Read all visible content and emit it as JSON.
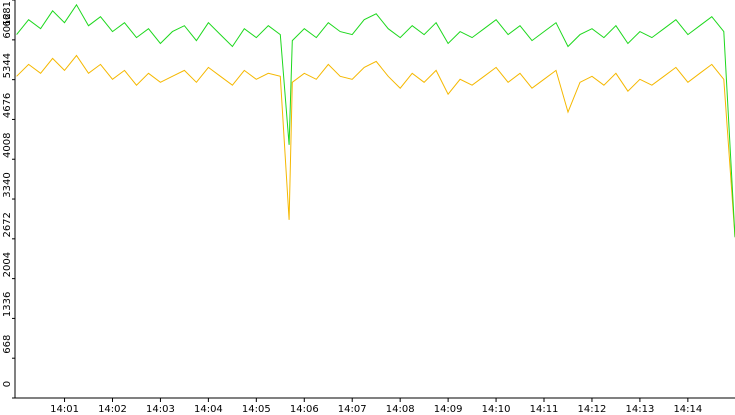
{
  "chart_data": {
    "type": "line",
    "x": [
      "14:00:00",
      "14:00:15",
      "14:00:30",
      "14:00:45",
      "14:01:00",
      "14:01:15",
      "14:01:30",
      "14:01:45",
      "14:02:00",
      "14:02:15",
      "14:02:30",
      "14:02:45",
      "14:03:00",
      "14:03:15",
      "14:03:30",
      "14:03:45",
      "14:04:00",
      "14:04:15",
      "14:04:30",
      "14:04:45",
      "14:05:00",
      "14:05:15",
      "14:05:30",
      "14:05:41",
      "14:05:45",
      "14:06:00",
      "14:06:15",
      "14:06:30",
      "14:06:45",
      "14:07:00",
      "14:07:15",
      "14:07:30",
      "14:07:45",
      "14:08:00",
      "14:08:15",
      "14:08:30",
      "14:08:45",
      "14:09:00",
      "14:09:15",
      "14:09:30",
      "14:09:45",
      "14:10:00",
      "14:10:15",
      "14:10:30",
      "14:10:45",
      "14:11:00",
      "14:11:15",
      "14:11:30",
      "14:11:45",
      "14:12:00",
      "14:12:15",
      "14:12:30",
      "14:12:45",
      "14:13:00",
      "14:13:15",
      "14:13:30",
      "14:13:45",
      "14:14:00",
      "14:14:15",
      "14:14:30",
      "14:14:45",
      "14:14:59"
    ],
    "series": [
      {
        "color": "#f5b800",
        "values": [
          5400,
          5600,
          5450,
          5700,
          5500,
          5750,
          5450,
          5600,
          5350,
          5500,
          5250,
          5450,
          5300,
          5400,
          5500,
          5300,
          5550,
          5400,
          5250,
          5500,
          5350,
          5450,
          5400,
          2990,
          5300,
          5450,
          5350,
          5600,
          5400,
          5350,
          5550,
          5650,
          5400,
          5200,
          5450,
          5300,
          5500,
          5100,
          5350,
          5250,
          5400,
          5550,
          5300,
          5450,
          5200,
          5350,
          5500,
          4800,
          5300,
          5400,
          5250,
          5450,
          5150,
          5350,
          5250,
          5400,
          5550,
          5300,
          5450,
          5600,
          5350,
          2700
        ]
      },
      {
        "color": "#1ed81e",
        "values": [
          6100,
          6350,
          6200,
          6500,
          6300,
          6600,
          6250,
          6400,
          6150,
          6300,
          6050,
          6200,
          5950,
          6150,
          6250,
          6000,
          6300,
          6100,
          5900,
          6200,
          6050,
          6250,
          6100,
          4250,
          6000,
          6200,
          6050,
          6300,
          6150,
          6100,
          6350,
          6450,
          6200,
          6050,
          6250,
          6100,
          6300,
          5950,
          6150,
          6050,
          6200,
          6350,
          6100,
          6250,
          6000,
          6150,
          6300,
          5900,
          6100,
          6200,
          6050,
          6250,
          5950,
          6150,
          6050,
          6200,
          6350,
          6100,
          6250,
          6400,
          6150,
          2700
        ]
      }
    ],
    "xlim": [
      "13:59:58",
      "14:14:59"
    ],
    "xticks": [
      "14:01",
      "14:02",
      "14:03",
      "14:04",
      "14:05",
      "14:06",
      "14:07",
      "14:08",
      "14:09",
      "14:10",
      "14:11",
      "14:12",
      "14:13",
      "14:14"
    ],
    "ylim": [
      0,
      6681
    ],
    "yticks": [
      0,
      668,
      1336,
      2004,
      2672,
      3340,
      4008,
      4676,
      5344,
      6012,
      6681
    ]
  }
}
